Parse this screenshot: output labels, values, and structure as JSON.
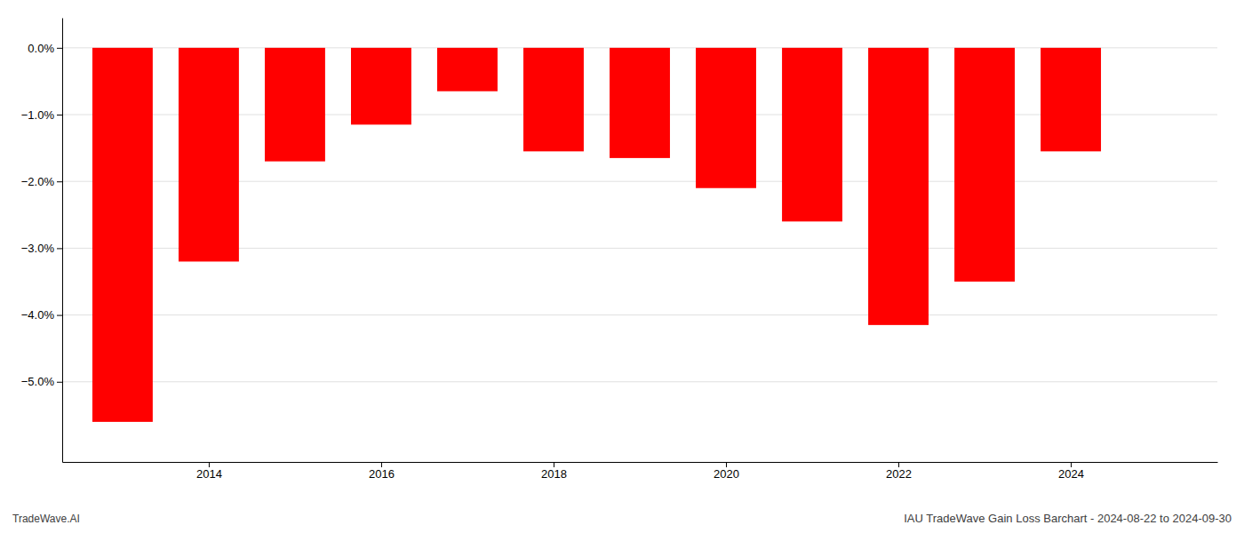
{
  "chart_data": {
    "type": "bar",
    "title": "IAU TradeWave Gain Loss Barchart - 2024-08-22 to 2024-09-30",
    "annotations": [
      "TradeWave.AI"
    ],
    "x": [
      2013,
      2014,
      2015,
      2016,
      2017,
      2018,
      2019,
      2020,
      2021,
      2022,
      2023,
      2024
    ],
    "values": [
      -5.6,
      -3.2,
      -1.7,
      -1.15,
      -0.65,
      -1.55,
      -1.65,
      -2.1,
      -2.6,
      -4.15,
      -3.5,
      -1.55
    ],
    "color": "#ff0000",
    "xlim": [
      2012.3,
      2025.7
    ],
    "xticks": [
      2014,
      2016,
      2018,
      2020,
      2022,
      2024
    ],
    "ylim": [
      -6.2,
      0.45
    ],
    "yticks": [
      {
        "value": 0.0,
        "label": "0.0%"
      },
      {
        "value": -1.0,
        "label": "−1.0%"
      },
      {
        "value": -2.0,
        "label": "−2.0%"
      },
      {
        "value": -3.0,
        "label": "−3.0%"
      },
      {
        "value": -4.0,
        "label": "−4.0%"
      },
      {
        "value": -5.0,
        "label": "−5.0%"
      }
    ],
    "grid": true
  }
}
